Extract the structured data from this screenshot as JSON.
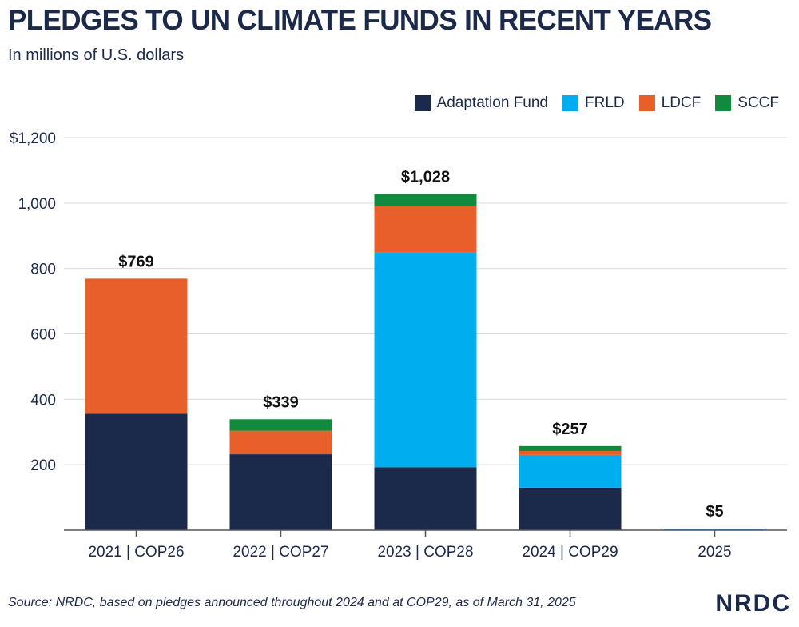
{
  "chart_data": {
    "type": "bar",
    "stacked": true,
    "title": "PLEDGES TO UN CLIMATE FUNDS IN RECENT YEARS",
    "subtitle": "In millions of U.S. dollars",
    "categories": [
      "2021 | COP26",
      "2022 | COP27",
      "2023 | COP28",
      "2024 | COP29",
      "2025"
    ],
    "series": [
      {
        "name": "Adaptation Fund",
        "color": "#1b2a4a",
        "values": [
          356,
          232,
          192,
          130,
          0
        ]
      },
      {
        "name": "FRLD",
        "color": "#00aeef",
        "values": [
          0,
          0,
          657,
          100,
          5
        ]
      },
      {
        "name": "LDCF",
        "color": "#e85f2a",
        "values": [
          413,
          72,
          142,
          12,
          0
        ]
      },
      {
        "name": "SCCF",
        "color": "#128a3e",
        "values": [
          0,
          35,
          37,
          15,
          0
        ]
      }
    ],
    "totals": [
      "$769",
      "$339",
      "$1,028",
      "$257",
      "$5"
    ],
    "yticks": [
      {
        "value": 200,
        "label": "200"
      },
      {
        "value": 400,
        "label": "400"
      },
      {
        "value": 600,
        "label": "600"
      },
      {
        "value": 800,
        "label": "800"
      },
      {
        "value": 1000,
        "label": "1,000"
      },
      {
        "value": 1200,
        "label": "$1,200"
      }
    ],
    "ylim": [
      0,
      1200
    ],
    "grid": true,
    "legend_position": "top-right",
    "xlabel": "",
    "ylabel": ""
  },
  "source": "Source: NRDC, based on pledges announced throughout 2024 and at COP29, as of March 31, 2025",
  "logo": "NRDC"
}
